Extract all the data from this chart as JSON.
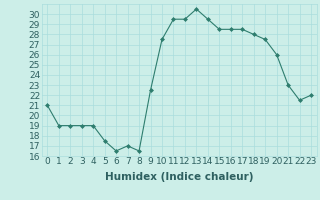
{
  "x": [
    0,
    1,
    2,
    3,
    4,
    5,
    6,
    7,
    8,
    9,
    10,
    11,
    12,
    13,
    14,
    15,
    16,
    17,
    18,
    19,
    20,
    21,
    22,
    23
  ],
  "y": [
    21,
    19,
    19,
    19,
    19,
    17.5,
    16.5,
    17,
    16.5,
    22.5,
    27.5,
    29.5,
    29.5,
    30.5,
    29.5,
    28.5,
    28.5,
    28.5,
    28,
    27.5,
    26,
    23,
    21.5,
    22
  ],
  "line_color": "#2e7d6e",
  "marker": "D",
  "marker_size": 2,
  "bg_color": "#cceee8",
  "grid_color": "#aadddd",
  "xlabel": "Humidex (Indice chaleur)",
  "ylim": [
    16,
    31
  ],
  "xlim": [
    -0.5,
    23.5
  ],
  "yticks": [
    16,
    17,
    18,
    19,
    20,
    21,
    22,
    23,
    24,
    25,
    26,
    27,
    28,
    29,
    30
  ],
  "xticks": [
    0,
    1,
    2,
    3,
    4,
    5,
    6,
    7,
    8,
    9,
    10,
    11,
    12,
    13,
    14,
    15,
    16,
    17,
    18,
    19,
    20,
    21,
    22,
    23
  ],
  "tick_color": "#2e6060",
  "label_fontsize": 6.5,
  "xlabel_fontsize": 7.5
}
